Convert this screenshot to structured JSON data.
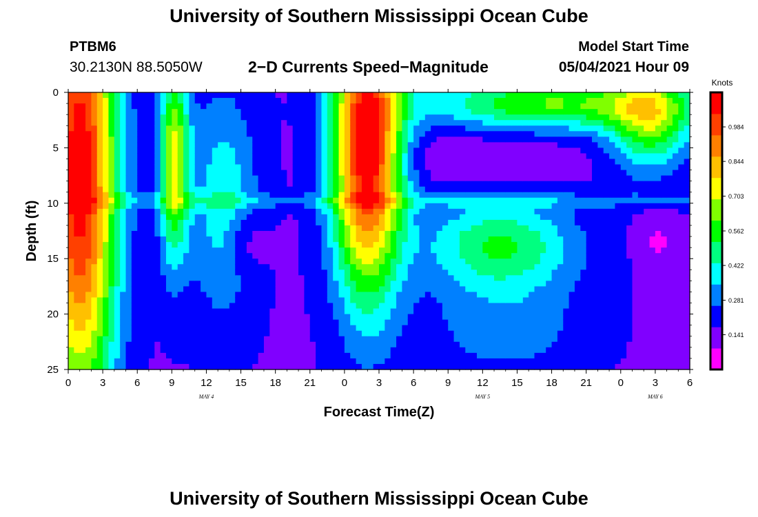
{
  "header": {
    "title": "University of Southern Mississippi Ocean Cube",
    "station": "PTBM6",
    "coords": "30.2130N  88.5050W",
    "subtitle": "2−D Currents Speed−Magnitude",
    "model_start_label": "Model Start Time",
    "model_start_value": "05/04/2021 Hour 09"
  },
  "footer": {
    "title": "University of Southern Mississippi Ocean Cube"
  },
  "chart_data": {
    "type": "heatmap",
    "xlabel": "Forecast Time(Z)",
    "ylabel": "Depth (ft)",
    "x_range_hours": [
      0,
      54
    ],
    "y_range": [
      0,
      25
    ],
    "y_reversed": true,
    "x_tick_labels": [
      "0",
      "3",
      "6",
      "9",
      "12",
      "15",
      "18",
      "21",
      "0",
      "3",
      "6",
      "9",
      "12",
      "15",
      "18",
      "21",
      "0",
      "3",
      "6"
    ],
    "y_tick_labels": [
      "0",
      "5",
      "10",
      "15",
      "20",
      "25"
    ],
    "date_labels": [
      {
        "hour": 12,
        "label": "MAY 4"
      },
      {
        "hour": 36,
        "label": "MAY 5"
      },
      {
        "hour": 51,
        "label": "MAY 6"
      }
    ],
    "colorbar": {
      "label": "Knots",
      "range": [
        0.0,
        1.124
      ],
      "tick_labels": [
        "0.984",
        "0.844",
        "0.703",
        "0.562",
        "0.422",
        "0.281",
        "0.141"
      ],
      "colors": [
        "#ff00ff",
        "#8000ff",
        "#0000ff",
        "#0080ff",
        "#00ffff",
        "#00ff80",
        "#00ff00",
        "#80ff00",
        "#ffff00",
        "#ffc000",
        "#ff8000",
        "#ff4000",
        "#ff0000"
      ]
    },
    "grid": false
  }
}
